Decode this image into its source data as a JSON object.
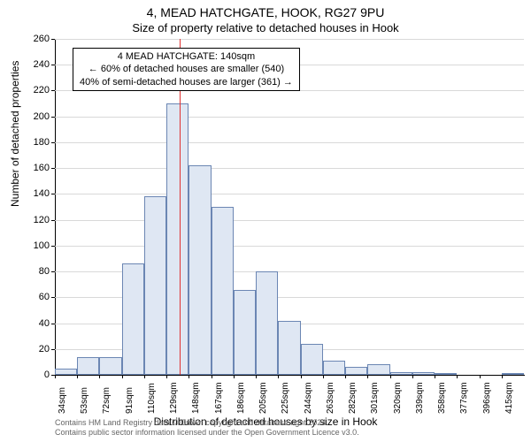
{
  "title_main": "4, MEAD HATCHGATE, HOOK, RG27 9PU",
  "title_sub": "Size of property relative to detached houses in Hook",
  "ylabel": "Number of detached properties",
  "xlabel": "Distribution of detached houses by size in Hook",
  "footer_line1": "Contains HM Land Registry data © Crown copyright and database right 2024.",
  "footer_line2": "Contains public sector information licensed under the Open Government Licence v3.0.",
  "chart": {
    "type": "histogram",
    "background_color": "#ffffff",
    "grid_color": "#d9d9d9",
    "bar_fill": "#dfe7f3",
    "bar_stroke": "#6b86b3",
    "axis_color": "#000000",
    "ylim": [
      0,
      260
    ],
    "ytick_step": 20,
    "xtick_labels": [
      "34sqm",
      "53sqm",
      "72sqm",
      "91sqm",
      "110sqm",
      "129sqm",
      "148sqm",
      "167sqm",
      "186sqm",
      "205sqm",
      "225sqm",
      "244sqm",
      "263sqm",
      "282sqm",
      "301sqm",
      "320sqm",
      "339sqm",
      "358sqm",
      "377sqm",
      "396sqm",
      "415sqm"
    ],
    "bin_start": 34,
    "bin_width_sqm": 19,
    "n_bins": 21,
    "values": [
      5,
      14,
      14,
      86,
      138,
      210,
      162,
      130,
      66,
      80,
      42,
      24,
      11,
      6,
      8,
      2,
      2,
      1,
      0,
      0,
      1
    ],
    "reference_line": {
      "x_sqm": 140,
      "color": "#e03131",
      "width": 1
    },
    "annotation": {
      "lines": [
        "4 MEAD HATCHGATE: 140sqm",
        "← 60% of detached houses are smaller (540)",
        "40% of semi-detached houses are larger (361) →"
      ],
      "text_color": "#000000",
      "border_color": "#000000",
      "bg_color": "#ffffff",
      "fontsize": 11
    },
    "title_fontsize": 14,
    "subtitle_fontsize": 13,
    "label_fontsize": 12,
    "tick_fontsize": 11
  }
}
